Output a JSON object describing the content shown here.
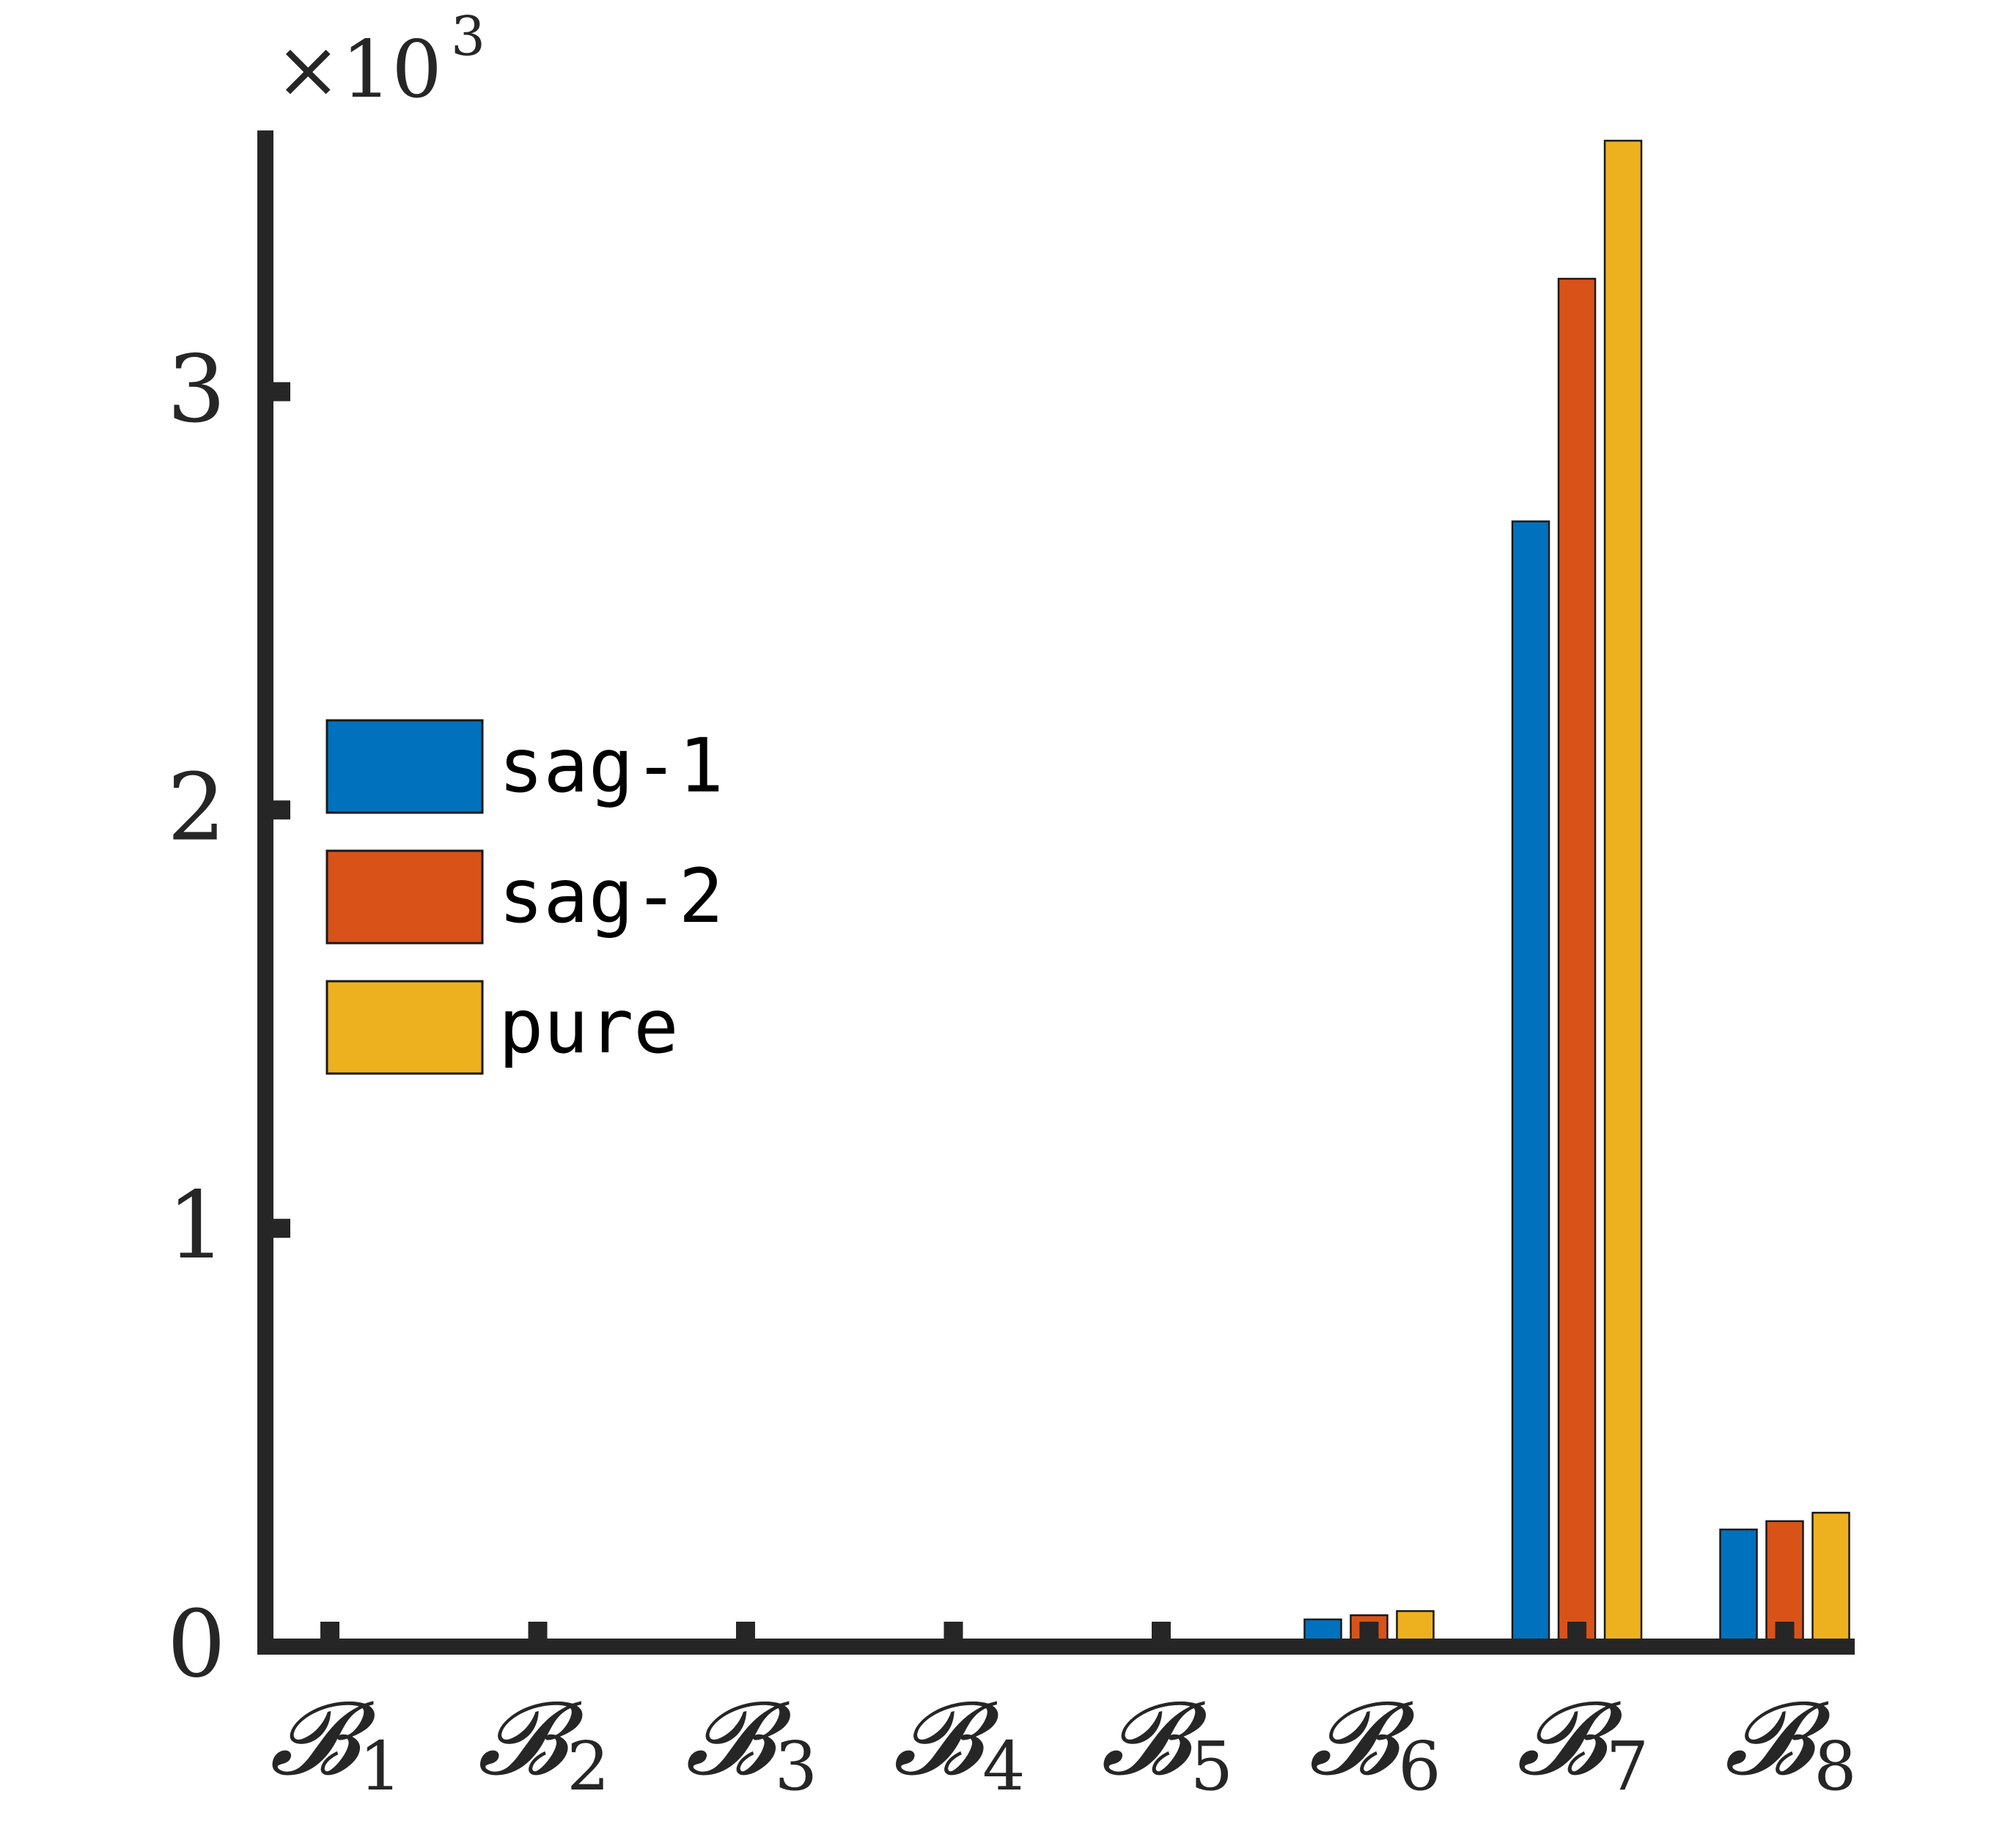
{
  "chart_data": {
    "type": "bar",
    "categories": [
      {
        "base": "𝓑",
        "sub": "1"
      },
      {
        "base": "𝓑",
        "sub": "2"
      },
      {
        "base": "𝓑",
        "sub": "3"
      },
      {
        "base": "𝓑",
        "sub": "4"
      },
      {
        "base": "𝓑",
        "sub": "5"
      },
      {
        "base": "𝓑",
        "sub": "6"
      },
      {
        "base": "𝓑",
        "sub": "7"
      },
      {
        "base": "𝓑",
        "sub": "8"
      }
    ],
    "series": [
      {
        "name": "sag-1",
        "color": "#0072BD",
        "values": [
          0,
          0,
          0,
          0,
          0,
          0.065,
          2.69,
          0.28
        ]
      },
      {
        "name": "sag-2",
        "color": "#D95319",
        "values": [
          0,
          0,
          0,
          0,
          0,
          0.075,
          3.27,
          0.3
        ]
      },
      {
        "name": "pure",
        "color": "#EDB120",
        "values": [
          0,
          0,
          0,
          0,
          0,
          0.085,
          3.6,
          0.32
        ]
      }
    ],
    "yticks": [
      "0",
      "1",
      "2",
      "3"
    ],
    "ylim": [
      0,
      3.6
    ],
    "y_exponent": {
      "prefix": "×10",
      "power": "3"
    },
    "xlabel": "",
    "ylabel": "",
    "title": "",
    "legend_position": "left-middle",
    "grid": false
  }
}
